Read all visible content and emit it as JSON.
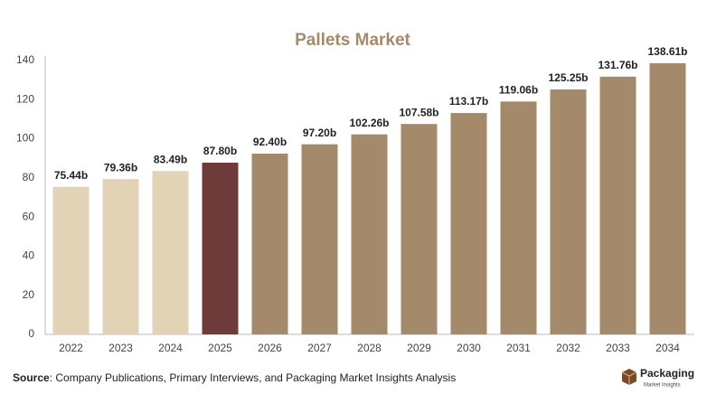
{
  "chart_data": {
    "type": "bar",
    "title": "Pallets Market",
    "categories": [
      "2022",
      "2023",
      "2024",
      "2025",
      "2026",
      "2027",
      "2028",
      "2029",
      "2030",
      "2031",
      "2032",
      "2033",
      "2034"
    ],
    "values": [
      75.44,
      79.36,
      83.49,
      87.8,
      92.4,
      97.2,
      102.26,
      107.58,
      113.17,
      119.06,
      125.25,
      131.76,
      138.61
    ],
    "value_labels": [
      "75.44b",
      "79.36b",
      "83.49b",
      "87.80b",
      "92.40b",
      "97.20b",
      "102.26b",
      "107.58b",
      "113.17b",
      "119.06b",
      "125.25b",
      "131.76b",
      "138.61b"
    ],
    "colors": [
      "#e2d2b6",
      "#e2d2b6",
      "#e2d2b6",
      "#6e3a3a",
      "#a48a6b",
      "#a48a6b",
      "#a48a6b",
      "#a48a6b",
      "#a48a6b",
      "#a48a6b",
      "#a48a6b",
      "#a48a6b",
      "#a48a6b"
    ],
    "ylim": [
      0,
      140
    ],
    "yticks": [
      0,
      20,
      40,
      60,
      80,
      100,
      120,
      140
    ],
    "grid": false
  },
  "source": {
    "label": "Source",
    "text": ": Company Publications, Primary Interviews, and Packaging Market Insights Analysis"
  },
  "logo": {
    "name": "Packaging",
    "tagline": "Market Insights"
  }
}
